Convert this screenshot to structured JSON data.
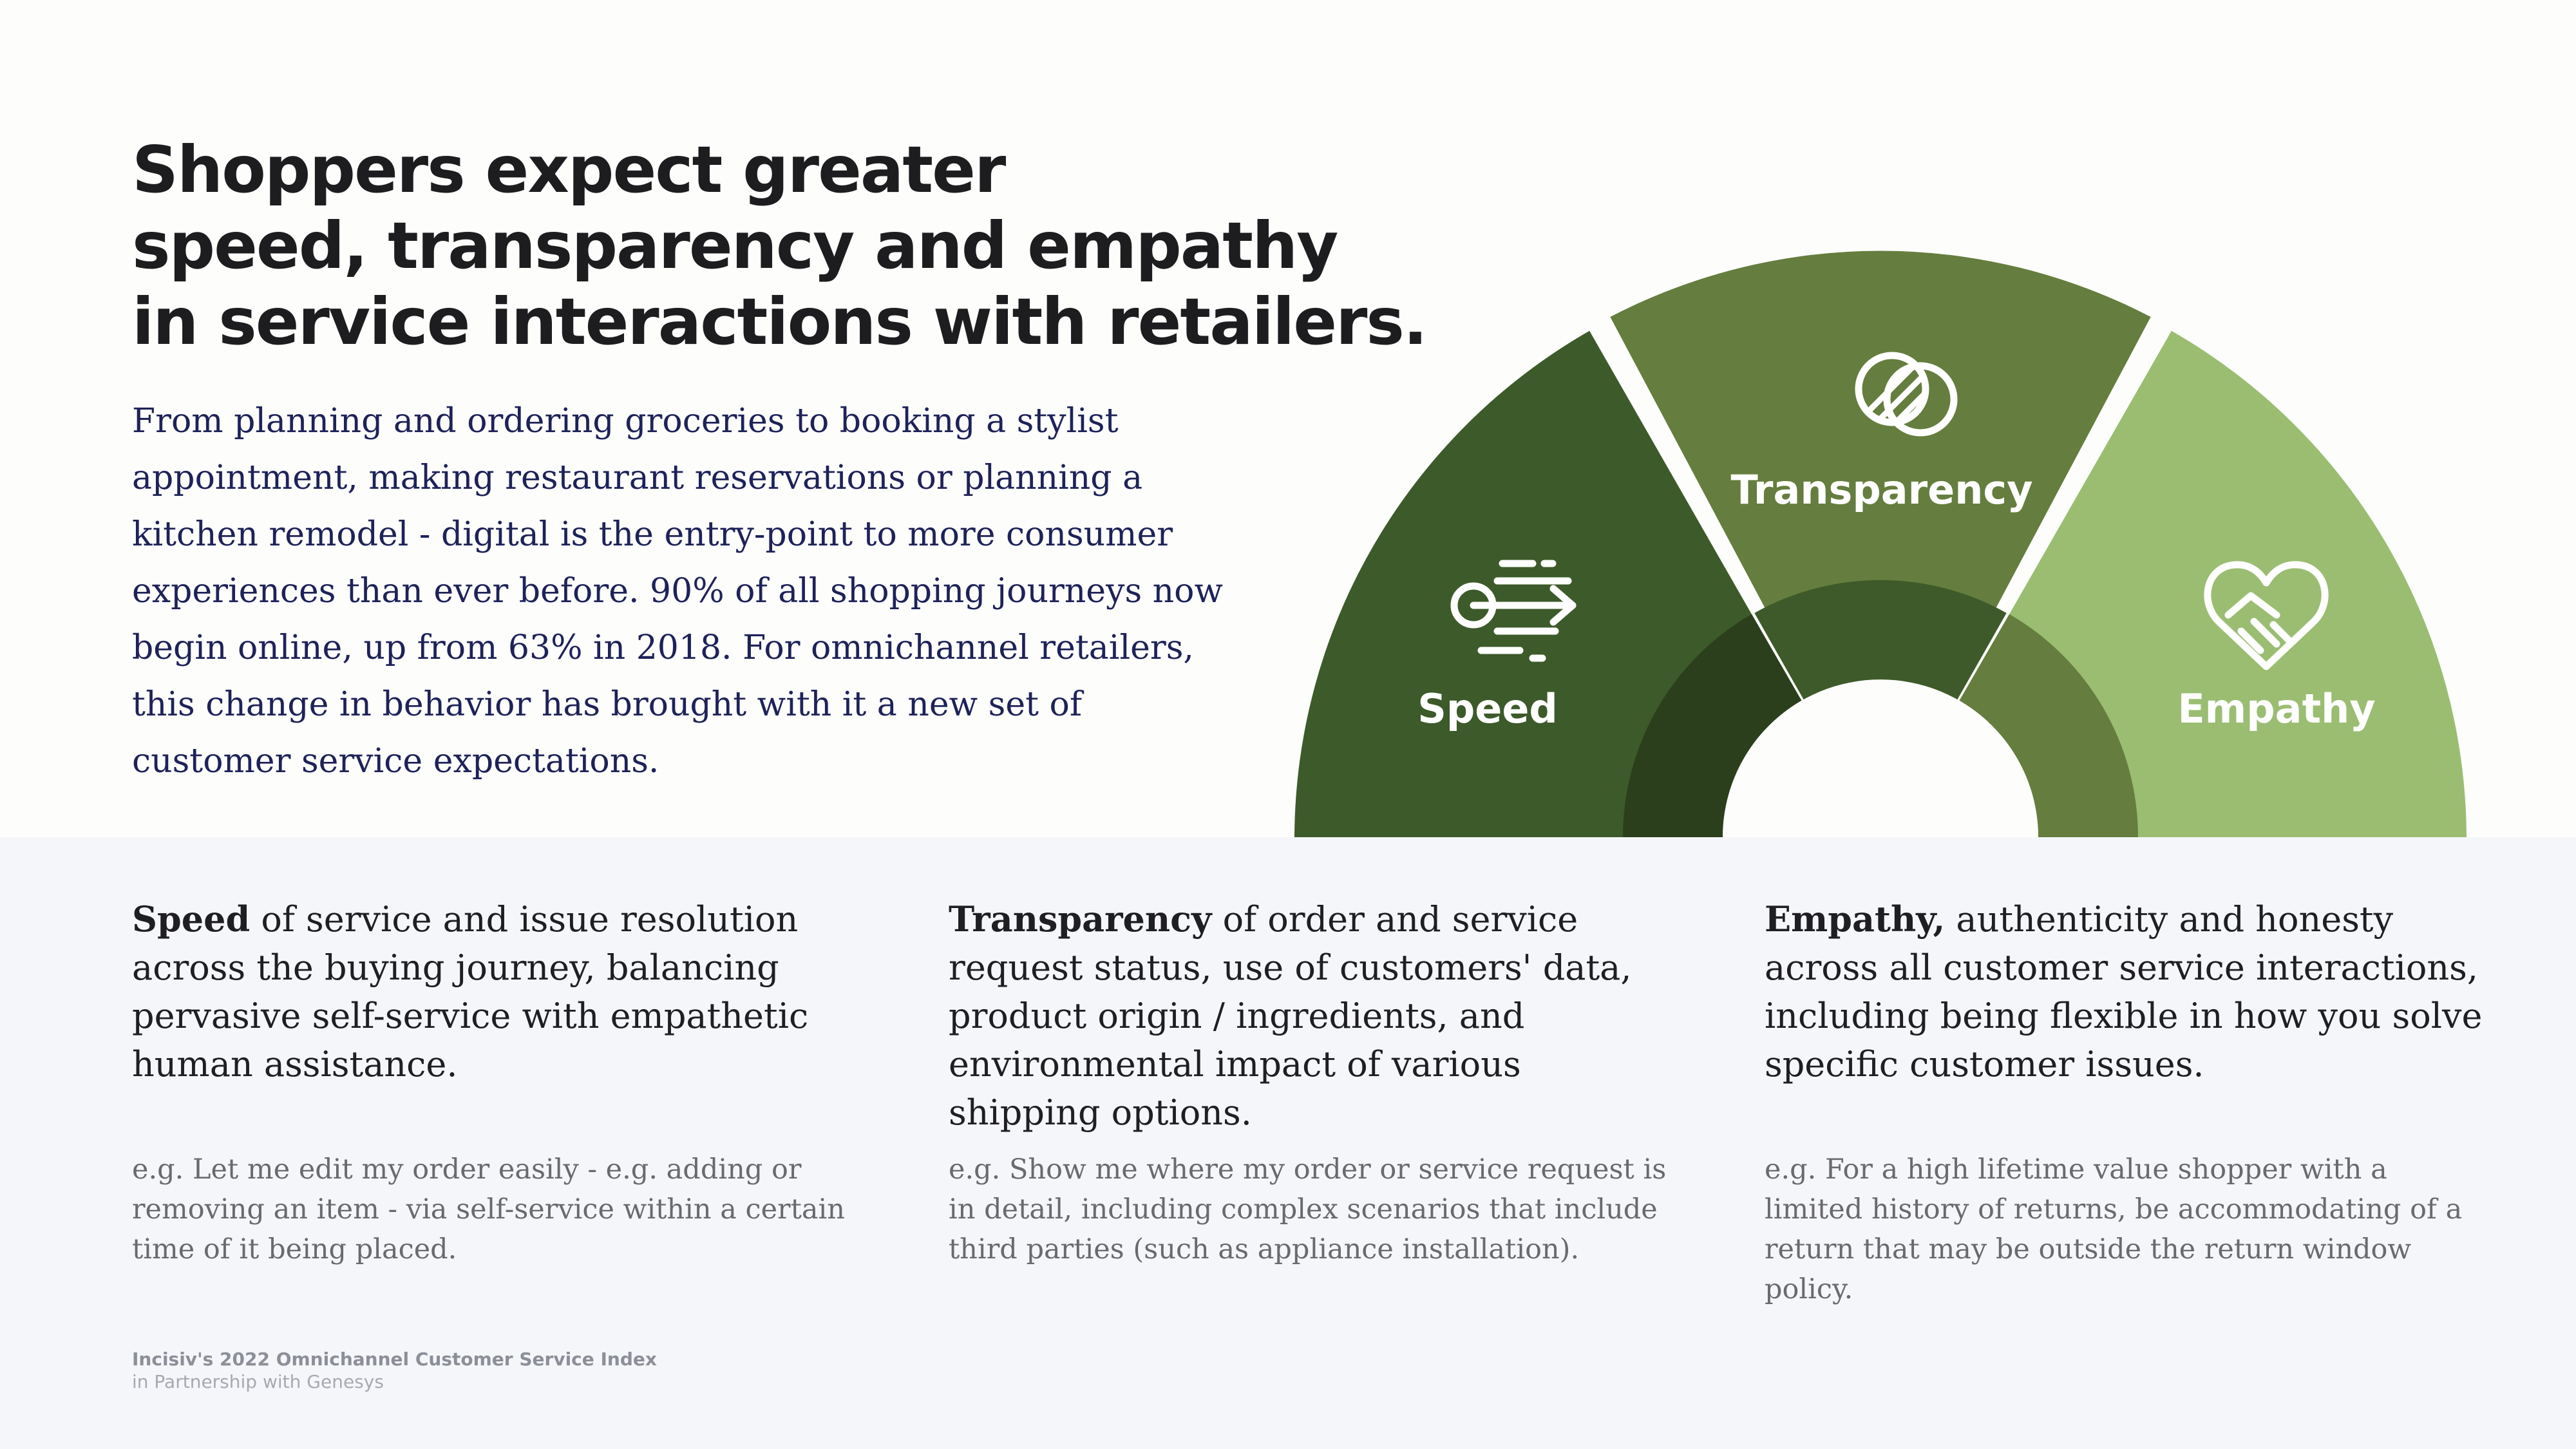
{
  "headline": [
    "Shoppers expect greater",
    "speed, transparency and empathy",
    "in service interactions with retailers."
  ],
  "intro": "From planning and ordering groceries to booking a stylist appointment, making restaurant reservations or planning a kitchen remodel - digital is the entry-point to more consumer experiences than ever before. 90% of all shopping journeys now begin online, up from 63% in 2018. For omnichannel retailers, this change in behavior has brought with it a new set of customer service expectations.",
  "segments": {
    "speed": {
      "label": "Speed",
      "icon": "speed-icon",
      "color": "#3d5a2a"
    },
    "transparency": {
      "label": "Transparency",
      "icon": "overlap-circles-icon",
      "color": "#657d3e"
    },
    "empathy": {
      "label": "Empathy",
      "icon": "handshake-heart-icon",
      "color": "#9bbd72"
    }
  },
  "columns": [
    {
      "term": "Speed",
      "rest": " of service and issue resolution across the buying journey, balancing pervasive self-service with empathetic human assistance.",
      "example": "e.g. Let me edit my order easily - e.g. adding or removing an item - via self-service within a certain time of it being placed."
    },
    {
      "term": "Transparency",
      "rest": " of order and service request status, use of customers' data, product origin / ingredients, and environmental impact of various shipping options.",
      "example": "e.g. Show me where my order or service request is in detail, including complex scenarios that include third parties (such as appliance installation)."
    },
    {
      "term": "Empathy,",
      "rest": " authenticity and honesty across all customer service interactions, including being flexible in how you solve specific customer issues.",
      "example": "e.g. For a high lifetime value shopper with a limited history of returns, be accommodating of a return that may be outside the return window policy."
    }
  ],
  "footer": {
    "line1": "Incisiv's 2022 Omnichannel Customer Service  Index",
    "line2": "in Partnership with Genesys"
  }
}
